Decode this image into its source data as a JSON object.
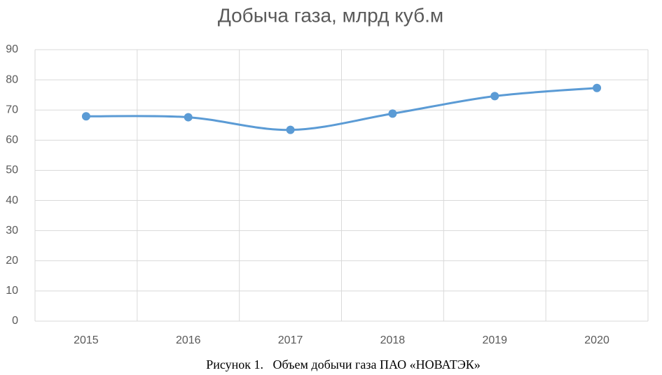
{
  "chart_data": {
    "type": "line",
    "title": "Добыча газа, млрд куб.м",
    "categories": [
      "2015",
      "2016",
      "2017",
      "2018",
      "2019",
      "2020"
    ],
    "series": [
      {
        "name": "Добыча газа",
        "color": "#5b9bd5",
        "values": [
          67.9,
          67.6,
          63.4,
          68.8,
          74.6,
          77.3
        ]
      }
    ],
    "ylim": [
      0,
      90
    ],
    "yticks": [
      0,
      10,
      20,
      30,
      40,
      50,
      60,
      70,
      80,
      90
    ],
    "grid": true,
    "smooth": true
  },
  "caption": "Рисунок 1.   Объем добычи газа ПАО «НОВАТЭК»"
}
